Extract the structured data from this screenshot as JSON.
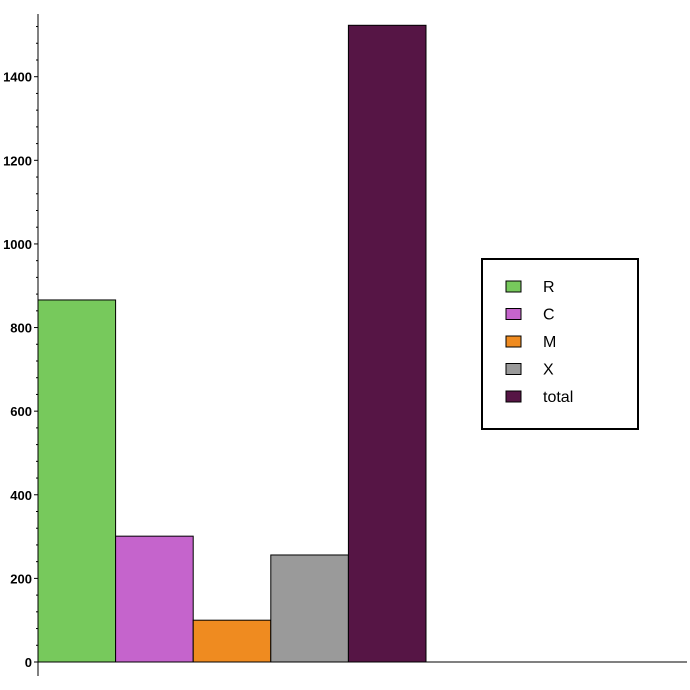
{
  "chart_data": {
    "type": "bar",
    "title": "",
    "xlabel": "",
    "ylabel": "",
    "ylim": [
      0,
      1550
    ],
    "yticks": [
      0,
      200,
      400,
      600,
      800,
      1000,
      1200,
      1400
    ],
    "ytick_labels": [
      "0",
      "200",
      "400",
      "600",
      "800",
      "1000",
      "1200",
      "1400"
    ],
    "minor_ticks_per_major": 5,
    "grid": false,
    "legend_position": "right",
    "series": [
      {
        "name": "R",
        "value": 866,
        "color": "#77c95c"
      },
      {
        "name": "C",
        "value": 301,
        "color": "#c564cc"
      },
      {
        "name": "M",
        "value": 100,
        "color": "#ef8b20"
      },
      {
        "name": "X",
        "value": 256,
        "color": "#9a9a9a"
      },
      {
        "name": "total",
        "value": 1523,
        "color": "#561545"
      }
    ]
  }
}
